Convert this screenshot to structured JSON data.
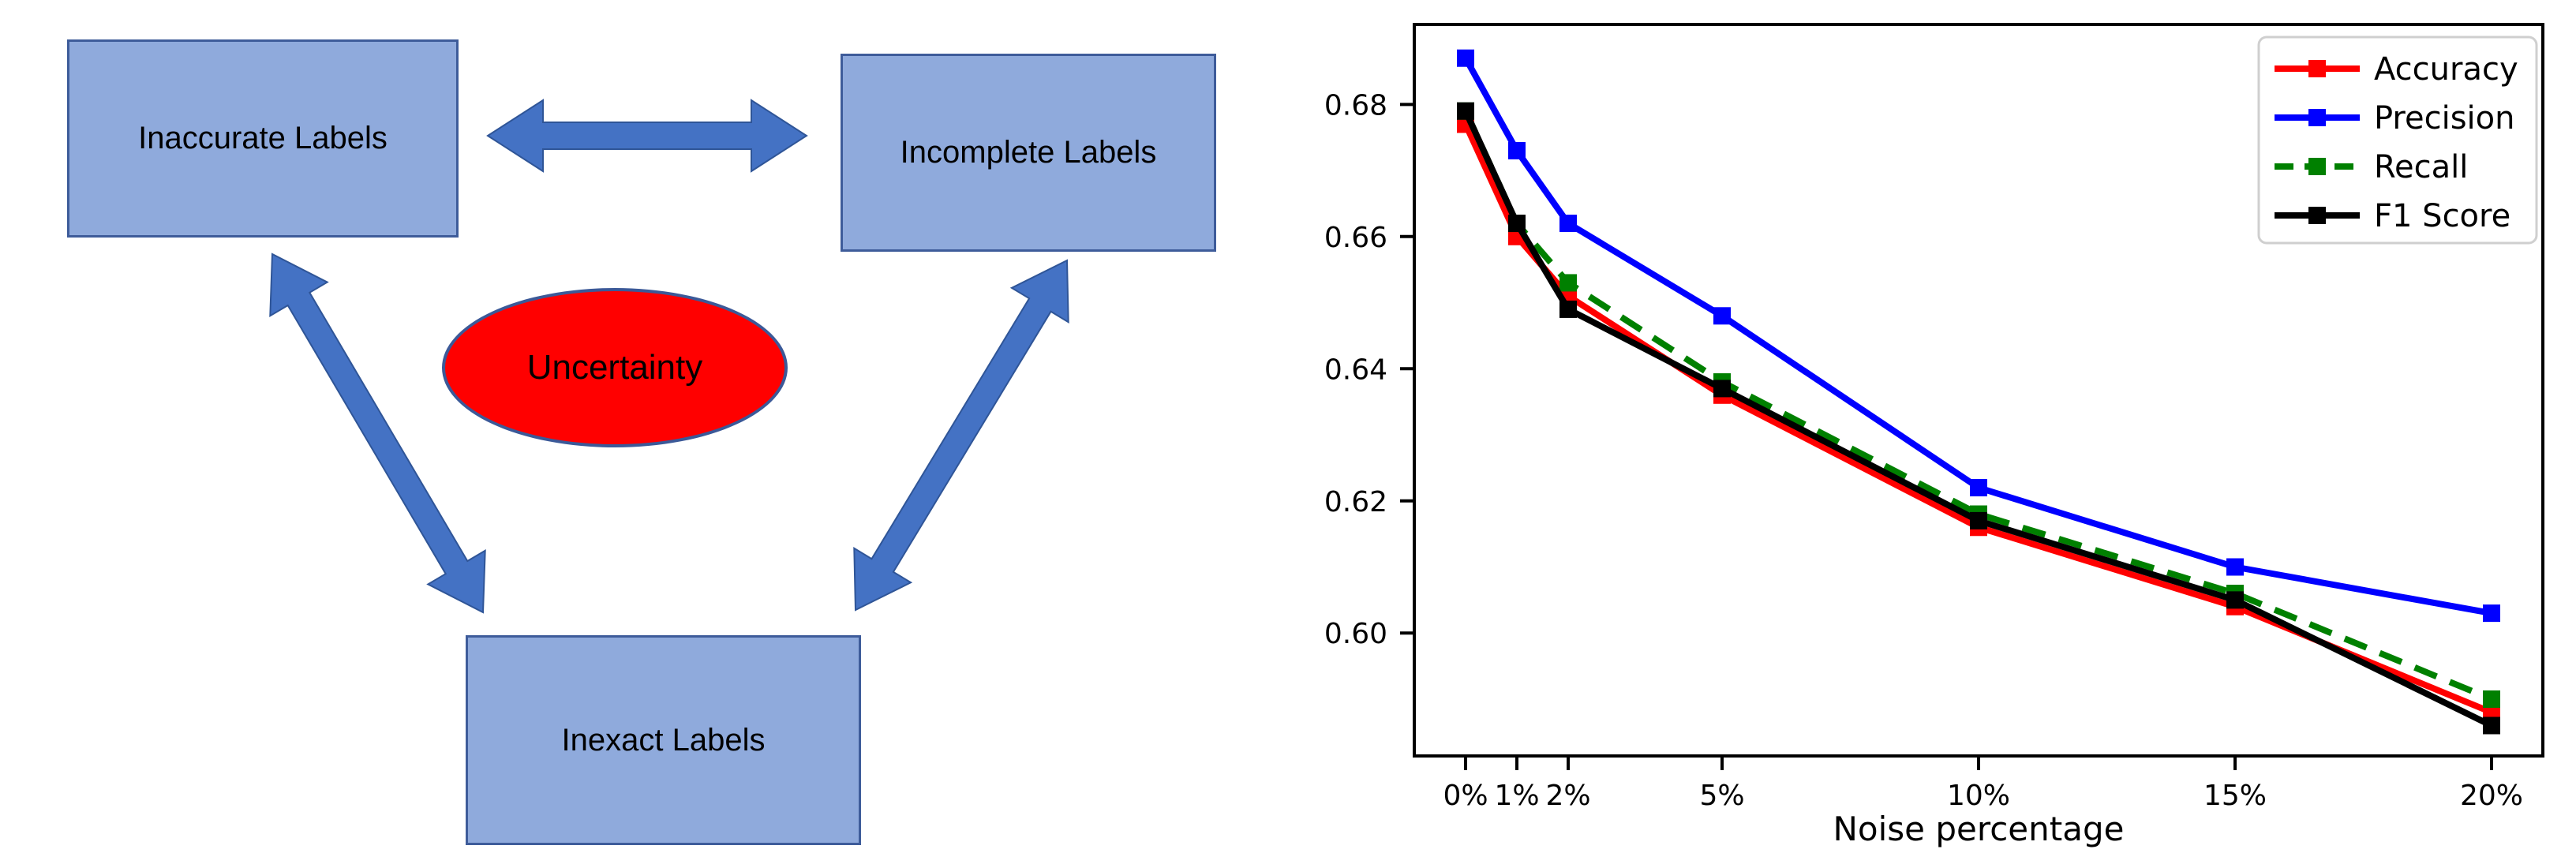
{
  "diagram": {
    "nodes": [
      {
        "id": "inaccurate",
        "label": "Inaccurate Labels"
      },
      {
        "id": "incomplete",
        "label": "Incomplete Labels"
      },
      {
        "id": "inexact",
        "label": "Inexact Labels"
      }
    ],
    "center": {
      "label": "Uncertainty"
    },
    "connections": [
      {
        "from": "inaccurate",
        "to": "incomplete",
        "style": "double-arrow"
      },
      {
        "from": "inaccurate",
        "to": "inexact",
        "style": "double-arrow"
      },
      {
        "from": "incomplete",
        "to": "inexact",
        "style": "double-arrow"
      }
    ],
    "colors": {
      "box_fill": "#8FAADC",
      "box_border": "#3E5C9A",
      "arrow_fill": "#4472C4",
      "arrow_border": "#2F5597",
      "ellipse_fill": "#FF0000",
      "ellipse_border": "#3B5998",
      "text": "#000000"
    }
  },
  "chart_data": {
    "type": "line",
    "x": [
      0,
      1,
      2,
      5,
      10,
      15,
      20
    ],
    "categories": [
      "0%",
      "1%",
      "2%",
      "5%",
      "10%",
      "15%",
      "20%"
    ],
    "xlabel": "Noise percentage",
    "ylabel": "",
    "yticks": [
      0.6,
      0.62,
      0.64,
      0.66,
      0.68
    ],
    "ytick_labels": [
      "0.60",
      "0.62",
      "0.64",
      "0.66",
      "0.68"
    ],
    "xlim": [
      -1,
      21
    ],
    "ylim": [
      0.5814,
      0.6921
    ],
    "grid": false,
    "legend_position": "upper right",
    "series": [
      {
        "name": "Accuracy",
        "color": "#FF0000",
        "dash": "solid",
        "marker": "square",
        "values": [
          0.677,
          0.66,
          0.651,
          0.636,
          0.616,
          0.604,
          0.588
        ]
      },
      {
        "name": "Precision",
        "color": "#0000FF",
        "dash": "solid",
        "marker": "square",
        "values": [
          0.687,
          0.673,
          0.662,
          0.648,
          0.622,
          0.61,
          0.603
        ]
      },
      {
        "name": "Recall",
        "color": "#008000",
        "dash": "dashed",
        "marker": "square",
        "values": [
          0.679,
          0.662,
          0.653,
          0.638,
          0.618,
          0.606,
          0.59
        ]
      },
      {
        "name": "F1 Score",
        "color": "#000000",
        "dash": "solid",
        "marker": "square",
        "values": [
          0.679,
          0.662,
          0.649,
          0.637,
          0.617,
          0.605,
          0.586
        ]
      }
    ]
  }
}
